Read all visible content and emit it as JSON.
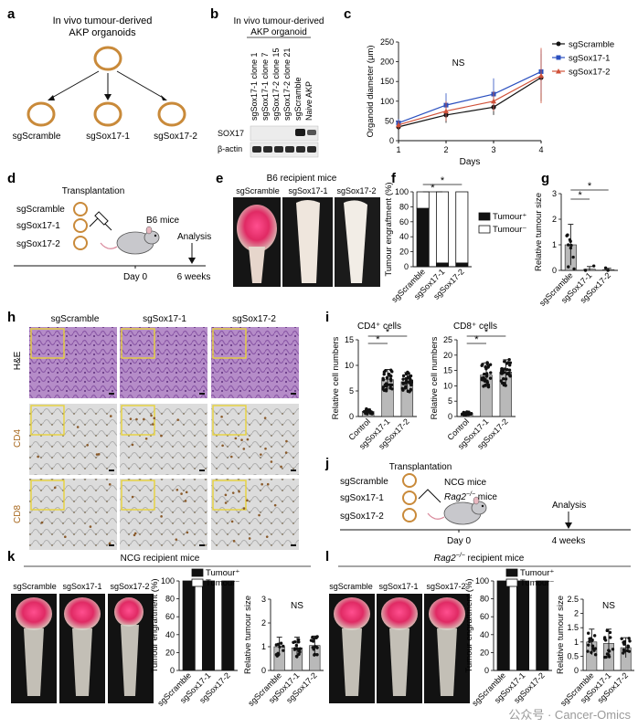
{
  "panels": {
    "a": {
      "label": "a",
      "title_line1": "In vivo tumour-derived",
      "title_line2": "AKP organoids",
      "children": [
        "sgScramble",
        "sgSox17-1",
        "sgSox17-2"
      ]
    },
    "b": {
      "label": "b",
      "title_line1": "In vivo tumour-derived",
      "title_line2": "AKP organoid",
      "lanes": [
        "sgSox17-1 clone 1",
        "sgSox17-1 clone 7",
        "sgSox17-2 clone 15",
        "sgSox17-2 clone 21",
        "sgScramble",
        "Naive AKP"
      ],
      "rows": [
        "SOX17",
        "β-actin"
      ]
    },
    "c": {
      "label": "c",
      "ylabel": "Organoid diameter (μm)",
      "xlabel": "Days",
      "annotation": "NS"
    },
    "d": {
      "label": "d",
      "title": "Transplantation",
      "groups": [
        "sgScramble",
        "sgSox17-1",
        "sgSox17-2"
      ],
      "mice": "B6 mice",
      "analysis": "Analysis",
      "day0": "Day 0",
      "end": "6 weeks"
    },
    "e": {
      "label": "e",
      "title": "B6 recipient mice",
      "groups": [
        "sgScramble",
        "sgSox17-1",
        "sgSox17-2"
      ]
    },
    "f": {
      "label": "f",
      "star": "*"
    },
    "g": {
      "label": "g",
      "star": "*"
    },
    "h": {
      "label": "h",
      "cols": [
        "sgScramble",
        "sgSox17-1",
        "sgSox17-2"
      ],
      "rows": [
        "H&E",
        "CD4",
        "CD8"
      ]
    },
    "i": {
      "label": "i",
      "titles": [
        "CD4⁺ cells",
        "CD8⁺ cells"
      ],
      "ylabel": "Relative cell numbers",
      "star": "*"
    },
    "j": {
      "label": "j",
      "title": "Transplantation",
      "groups": [
        "sgScramble",
        "sgSox17-1",
        "sgSox17-2"
      ],
      "mice1": "NCG mice",
      "mice2_pre": "Rag2",
      "mice2_sup": "−/−",
      "mice2_post": " mice",
      "analysis": "Analysis",
      "day0": "Day 0",
      "end": "4 weeks"
    },
    "k": {
      "label": "k",
      "title": "NCG  recipient mice",
      "groups": [
        "sgScramble",
        "sgSox17-1",
        "sgSox17-2"
      ]
    },
    "l": {
      "label": "l",
      "title_pre": "Rag2",
      "title_sup": "−/−",
      "title_post": " recipient mice",
      "groups": [
        "sgScramble",
        "sgSox17-1",
        "sgSox17-2"
      ]
    },
    "watermark": "公众号 · Cancer-Omics"
  },
  "chart_data": [
    {
      "id": "c",
      "type": "line",
      "xlabel": "Days",
      "ylabel": "Organoid diameter (μm)",
      "x": [
        1,
        2,
        3,
        4
      ],
      "xlim": [
        1,
        4
      ],
      "ylim": [
        0,
        250
      ],
      "yticks": [
        0,
        50,
        100,
        150,
        200,
        250
      ],
      "annotation": "NS",
      "series": [
        {
          "name": "sgScramble",
          "color": "#111111",
          "marker": "circle",
          "values": [
            35,
            65,
            85,
            160
          ],
          "err": [
            8,
            20,
            20,
            60
          ]
        },
        {
          "name": "sgSox17-1",
          "color": "#2a4fbf",
          "marker": "square",
          "values": [
            45,
            90,
            118,
            175
          ],
          "err": [
            10,
            30,
            40,
            55
          ]
        },
        {
          "name": "sgSox17-2",
          "color": "#d0523a",
          "marker": "triangle",
          "values": [
            40,
            75,
            100,
            165
          ],
          "err": [
            10,
            25,
            25,
            70
          ]
        }
      ]
    },
    {
      "id": "f",
      "type": "bar",
      "stacked": true,
      "ylabel": "Tumour engraftment (%)",
      "categories": [
        "sgScramble",
        "sgSox17-1",
        "sgSox17-2"
      ],
      "ylim": [
        0,
        100
      ],
      "yticks": [
        0,
        20,
        40,
        60,
        80,
        100
      ],
      "series": [
        {
          "name": "Tumour⁺",
          "color": "#111111",
          "values": [
            78,
            5,
            5
          ]
        },
        {
          "name": "Tumour⁻",
          "color": "#ffffff",
          "values": [
            22,
            95,
            95
          ]
        }
      ],
      "legend": "right"
    },
    {
      "id": "g",
      "type": "bar",
      "ylabel": "Relative tumour size",
      "categories": [
        "sgScramble",
        "sgSox17-1",
        "sgSox17-2"
      ],
      "ylim": [
        0,
        3
      ],
      "yticks": [
        0,
        1,
        2,
        3
      ],
      "values": [
        1.0,
        0.05,
        0.03
      ],
      "err": [
        0.8,
        0.1,
        0.05
      ]
    },
    {
      "id": "i1",
      "type": "bar",
      "title": "CD4⁺ cells",
      "ylabel": "Relative cell numbers",
      "categories": [
        "Control",
        "sgSox17-1",
        "sgSox17-2"
      ],
      "ylim": [
        0,
        15
      ],
      "yticks": [
        0,
        5,
        10,
        15
      ],
      "values": [
        1,
        7.2,
        6.8
      ],
      "err": [
        0.5,
        2.0,
        1.8
      ]
    },
    {
      "id": "i2",
      "type": "bar",
      "title": "CD8⁺ cells",
      "ylabel": "Relative cell numbers",
      "categories": [
        "Control",
        "sgSox17-1",
        "sgSox17-2"
      ],
      "ylim": [
        0,
        25
      ],
      "yticks": [
        0,
        5,
        10,
        15,
        20,
        25
      ],
      "values": [
        1,
        13.5,
        14.5
      ],
      "err": [
        0.5,
        4,
        4
      ]
    },
    {
      "id": "k1",
      "type": "bar",
      "stacked": true,
      "ylabel": "Tumour engraftment (%)",
      "categories": [
        "sgScramble",
        "sgSox17-1",
        "sgSox17-2"
      ],
      "ylim": [
        0,
        100
      ],
      "yticks": [
        0,
        20,
        40,
        60,
        80,
        100
      ],
      "series": [
        {
          "name": "Tumour⁺",
          "color": "#111111",
          "values": [
            100,
            100,
            100
          ]
        },
        {
          "name": "Tumour⁻",
          "color": "#ffffff",
          "values": [
            0,
            0,
            0
          ]
        }
      ],
      "legend": "top"
    },
    {
      "id": "k2",
      "type": "bar",
      "ylabel": "Relative tumour size",
      "annotation": "NS",
      "categories": [
        "sgScramble",
        "sgSox17-1",
        "sgSox17-2"
      ],
      "ylim": [
        0,
        3
      ],
      "yticks": [
        0,
        1,
        2,
        3
      ],
      "values": [
        1.0,
        0.95,
        1.05
      ],
      "err": [
        0.4,
        0.45,
        0.4
      ]
    },
    {
      "id": "l1",
      "type": "bar",
      "stacked": true,
      "ylabel": "Tumour engraftment (%)",
      "categories": [
        "sgScramble",
        "sgSox17-1",
        "sgSox17-2"
      ],
      "ylim": [
        0,
        100
      ],
      "yticks": [
        0,
        20,
        40,
        60,
        80,
        100
      ],
      "series": [
        {
          "name": "Tumour⁺",
          "color": "#111111",
          "values": [
            100,
            100,
            100
          ]
        },
        {
          "name": "Tumour⁻",
          "color": "#ffffff",
          "values": [
            0,
            0,
            0
          ]
        }
      ],
      "legend": "top"
    },
    {
      "id": "l2",
      "type": "bar",
      "ylabel": "Relative tumour size",
      "annotation": "NS",
      "categories": [
        "sgScramble",
        "sgSox17-1",
        "sgSox17-2"
      ],
      "ylim": [
        0,
        2.5
      ],
      "yticks": [
        0,
        0.5,
        1.0,
        1.5,
        2.0,
        2.5
      ],
      "values": [
        1.0,
        0.95,
        0.8
      ],
      "err": [
        0.45,
        0.5,
        0.35
      ]
    }
  ]
}
